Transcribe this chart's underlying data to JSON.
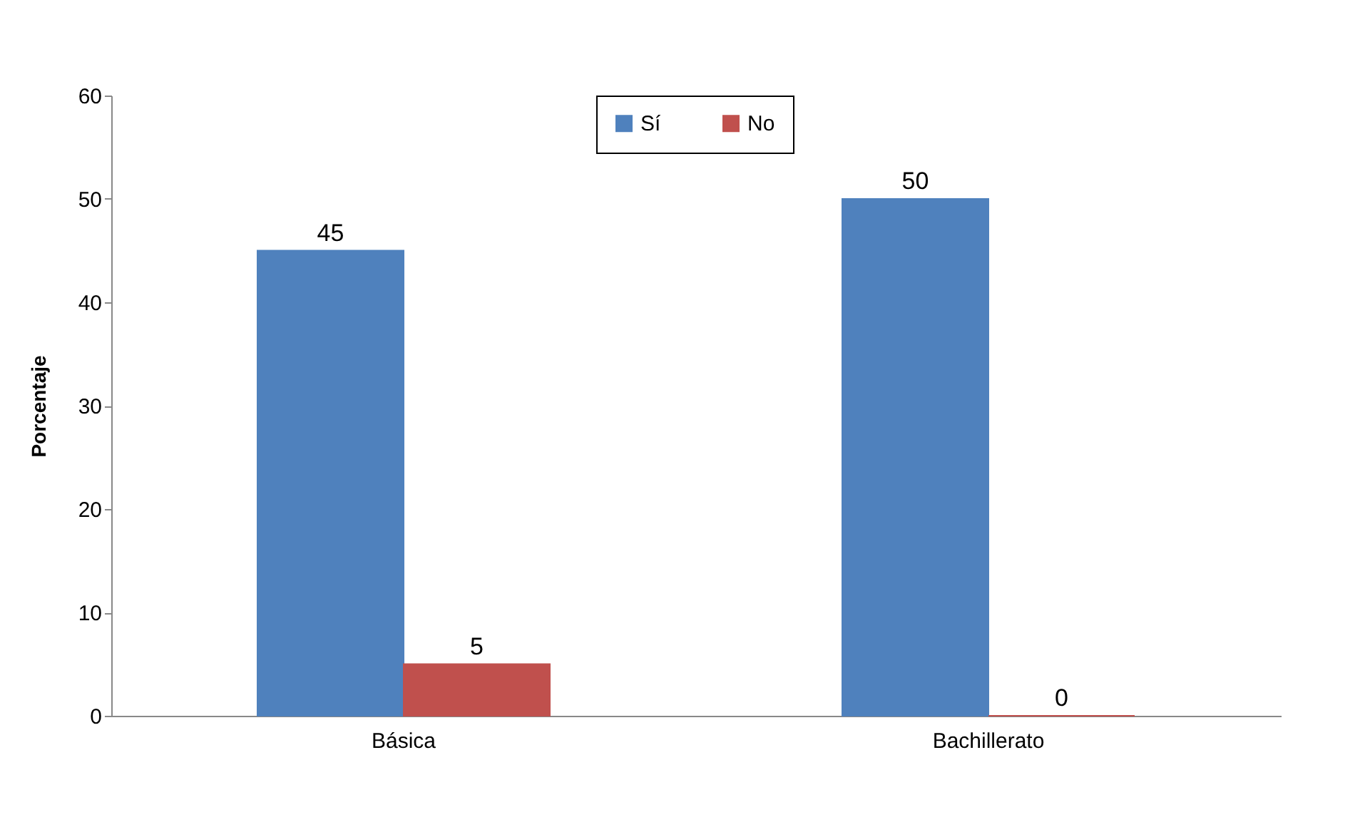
{
  "chart_data": {
    "type": "bar",
    "ylabel": "Porcentaje",
    "categories": [
      "Básica",
      "Bachillerato"
    ],
    "series": [
      {
        "name": "Sí",
        "color": "#4f81bd",
        "values": [
          45,
          50
        ]
      },
      {
        "name": "No",
        "color": "#c0504d",
        "values": [
          5,
          0
        ]
      }
    ],
    "ylim": [
      0,
      60
    ],
    "yticks": [
      0,
      10,
      20,
      30,
      40,
      50,
      60
    ],
    "grid": false,
    "legend": "top",
    "data_labels": true
  }
}
